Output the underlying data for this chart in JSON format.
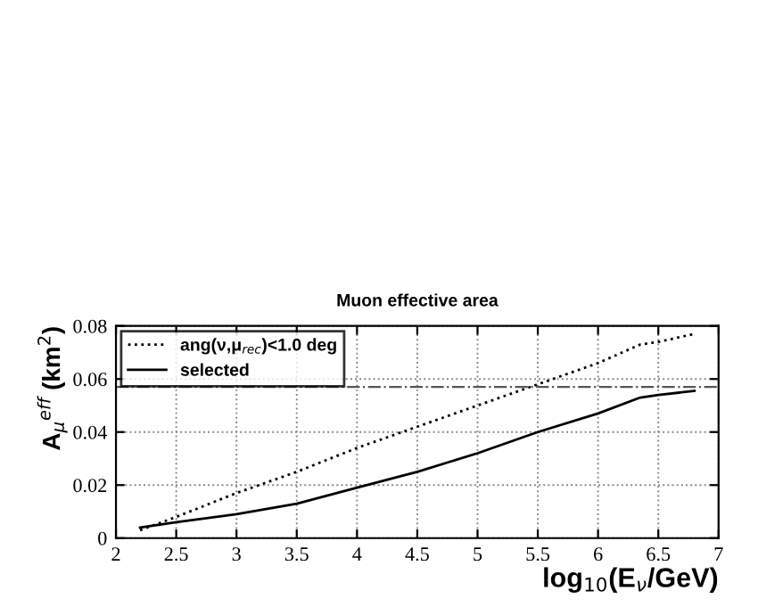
{
  "chart_data": {
    "type": "line",
    "title": "Muon effective area",
    "xlabel": "log$_{10}$(E$_{ν}$/GeV)",
    "ylabel": "A$_{μ}$$^{eff}$ (km$^{2}$)",
    "xlim": [
      2,
      7
    ],
    "xticks": [
      2,
      2.5,
      3,
      3.5,
      4,
      4.5,
      5,
      5.5,
      6,
      6.5,
      7
    ],
    "ylim": [
      0,
      0.08
    ],
    "yticks": [
      0,
      0.02,
      0.04,
      0.06,
      0.08
    ],
    "grid": true,
    "legend": "top left",
    "series": [
      {
        "name": "ang(ν,μ$_{rec}$)<1.0 deg",
        "color": "#000000",
        "line_style": "dotted",
        "x": [
          2.2,
          2.5,
          3,
          3.5,
          4,
          4.5,
          5,
          5.5,
          6,
          6.35,
          6.5,
          6.8
        ],
        "values": [
          0.003,
          0.008,
          0.017,
          0.025,
          0.034,
          0.042,
          0.05,
          0.058,
          0.066,
          0.073,
          0.074,
          0.077
        ]
      },
      {
        "name": "selected",
        "color": "#000000",
        "line_style": "solid",
        "x": [
          2.2,
          2.5,
          3,
          3.5,
          4,
          4.5,
          5,
          5.5,
          6,
          6.35,
          6.5,
          6.8
        ],
        "values": [
          0.004,
          0.006,
          0.009,
          0.013,
          0.019,
          0.025,
          0.032,
          0.04,
          0.047,
          0.053,
          0.054,
          0.0555
        ]
      }
    ],
    "ref_lines": [
      {
        "axis": "y",
        "value": 0.057,
        "label": null,
        "color": "#555555",
        "line_style": "dashdot"
      }
    ]
  }
}
